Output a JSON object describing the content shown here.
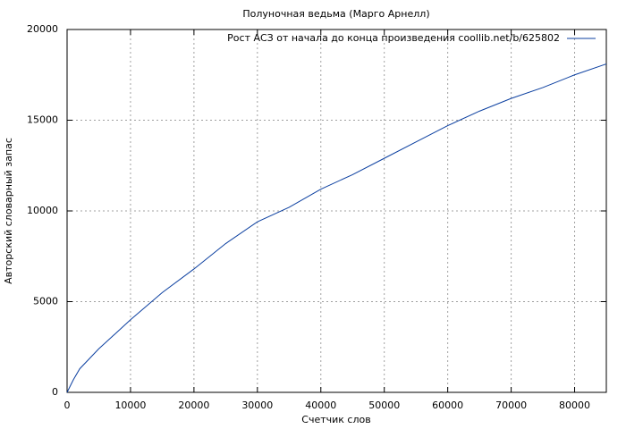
{
  "chart_data": {
    "type": "line",
    "title": "Полуночная ведьма (Марго Арнелл)",
    "x_label": "Счетчик слов",
    "y_label": "Авторский словарный запас",
    "x": [
      0,
      1000,
      2000,
      5000,
      10000,
      15000,
      20000,
      25000,
      30000,
      35000,
      40000,
      45000,
      50000,
      55000,
      60000,
      65000,
      70000,
      75000,
      80000,
      85000
    ],
    "series": [
      {
        "name": "Рост АСЗ от начала до конца произведения coollib.net/b/625802",
        "color": "#0b3fa0",
        "values": [
          0,
          700,
          1300,
          2400,
          4000,
          5500,
          6800,
          8200,
          9400,
          10200,
          11200,
          12000,
          12900,
          13800,
          14700,
          15500,
          16200,
          16800,
          17500,
          18100
        ]
      }
    ],
    "xlim": [
      0,
      85000
    ],
    "ylim": [
      0,
      20000
    ],
    "xticks": [
      0,
      10000,
      20000,
      30000,
      40000,
      50000,
      60000,
      70000,
      80000
    ],
    "yticks": [
      0,
      5000,
      10000,
      15000,
      20000
    ],
    "grid": true,
    "legend": "top-right"
  }
}
